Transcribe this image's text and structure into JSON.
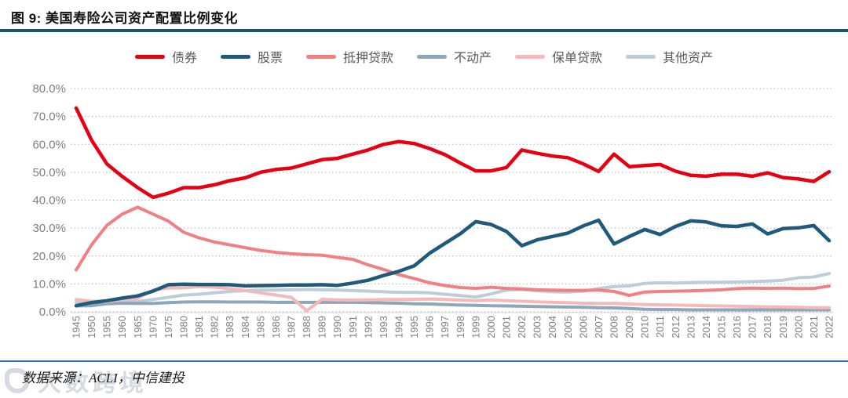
{
  "header": {
    "title": "图 9:  美国寿险公司资产配置比例变化"
  },
  "footer": {
    "source": "数据来源：ACLI，中信建投"
  },
  "watermark": {
    "text": "大数跨境",
    "logo": "rounded-square-logo"
  },
  "chart_data": {
    "type": "line",
    "title": "美国寿险公司资产配置比例变化",
    "legend_position": "top-center",
    "grid": "dotted-horizontal",
    "y_axis": {
      "min": 0,
      "max": 80,
      "tick_step": 10,
      "tick_labels": [
        "0.0%",
        "10.0%",
        "20.0%",
        "30.0%",
        "40.0%",
        "50.0%",
        "60.0%",
        "70.0%",
        "80.0%"
      ],
      "label_color": "#7f7f7f"
    },
    "x_categories": [
      "1945",
      "1950",
      "1955",
      "1960",
      "1965",
      "1970",
      "1975",
      "1980",
      "1981",
      "1982",
      "1983",
      "1984",
      "1985",
      "1986",
      "1987",
      "1988",
      "1989",
      "1990",
      "1991",
      "1992",
      "1993",
      "1994",
      "1995",
      "1996",
      "1997",
      "1998",
      "1999",
      "2000",
      "2001",
      "2002",
      "2003",
      "2004",
      "2005",
      "2006",
      "2007",
      "2008",
      "2009",
      "2010",
      "2011",
      "2012",
      "2013",
      "2014",
      "2015",
      "2016",
      "2017",
      "2018",
      "2019",
      "2020",
      "2021",
      "2022"
    ],
    "series": [
      {
        "name": "债券",
        "color": "#e60012",
        "values": [
          73,
          61.5,
          53,
          48.5,
          44.5,
          41,
          42.5,
          44.5,
          44.5,
          45.5,
          47,
          48,
          50,
          51,
          51.5,
          53,
          54.5,
          55,
          56.5,
          58,
          60,
          61,
          60.3,
          58.5,
          56.3,
          53.3,
          50.5,
          50.5,
          51.7,
          58,
          56.8,
          55.8,
          55.2,
          53,
          50.3,
          56.5,
          52,
          52.4,
          52.8,
          50.4,
          48.9,
          48.6,
          49.3,
          49.3,
          48.6,
          49.8,
          48.1,
          47.6,
          46.7,
          50.2
        ]
      },
      {
        "name": "股票",
        "color": "#1f5a7d",
        "values": [
          2.2,
          3.3,
          4,
          4.9,
          5.7,
          7.4,
          9.7,
          9.9,
          9.8,
          9.8,
          9.7,
          9.3,
          9.4,
          9.5,
          9.6,
          9.6,
          9.7,
          9.5,
          10.3,
          11.3,
          13,
          14.5,
          16.5,
          21,
          24.5,
          28,
          32.3,
          31.3,
          28.8,
          23.7,
          25.8,
          27,
          28.2,
          30.8,
          32.8,
          24.3,
          27,
          29.5,
          27.7,
          30.6,
          32.6,
          32.2,
          30.8,
          30.6,
          31.5,
          27.9,
          29.8,
          30.1,
          30.9,
          25.5
        ]
      },
      {
        "name": "抵押贷款",
        "color": "#f08082",
        "values": [
          15,
          24,
          31,
          35,
          37.5,
          35,
          32.5,
          28.5,
          26.5,
          25,
          24,
          23,
          22,
          21.3,
          20.8,
          20.5,
          20.3,
          19.5,
          18.8,
          16.8,
          15.2,
          13.3,
          11.9,
          10.4,
          9.4,
          8.7,
          8.4,
          8.8,
          8.4,
          8.2,
          7.9,
          7.8,
          7.7,
          7.7,
          7.8,
          7.3,
          5.9,
          7.1,
          7.3,
          7.4,
          7.5,
          7.7,
          7.9,
          8.3,
          8.5,
          8.4,
          8.5,
          8.3,
          8.4,
          9.2
        ]
      },
      {
        "name": "不动产",
        "color": "#8ea6b8",
        "values": [
          2.1,
          2.2,
          2.9,
          3.1,
          3,
          3,
          3.3,
          3.5,
          3.6,
          3.6,
          3.5,
          3.5,
          3.5,
          3.4,
          3.4,
          3.4,
          3.4,
          3.4,
          3.4,
          3.3,
          3.2,
          3.1,
          2.9,
          2.8,
          2.6,
          2.4,
          2.3,
          2.2,
          2.1,
          2,
          1.9,
          1.8,
          1.7,
          1.6,
          1.5,
          1.4,
          1.2,
          0.9,
          0.8,
          0.8,
          0.7,
          0.7,
          0.7,
          0.7,
          0.7,
          0.7,
          0.7,
          0.7,
          0.7,
          0.7
        ]
      },
      {
        "name": "保单贷款",
        "color": "#f6b8b8",
        "values": [
          4.4,
          3.8,
          3.6,
          4.4,
          4.8,
          7.8,
          8.5,
          8.6,
          9,
          8.8,
          8.3,
          7.6,
          6.8,
          6,
          5.2,
          0.4,
          4.5,
          4.3,
          4.2,
          4.3,
          4.4,
          4.4,
          4.5,
          4.6,
          4.4,
          4.2,
          4,
          4.2,
          4,
          3.8,
          3.6,
          3.4,
          3.3,
          3.1,
          3,
          3,
          2.8,
          2.6,
          2.5,
          2.4,
          2.3,
          2.2,
          2.1,
          2,
          1.9,
          1.8,
          1.7,
          1.6,
          1.5,
          1.5
        ]
      },
      {
        "name": "其他资产",
        "color": "#bccdd8",
        "values": [
          3.4,
          3.2,
          3.1,
          3.3,
          3.7,
          4.4,
          5.2,
          6,
          6.3,
          6.8,
          7.3,
          7.6,
          7.8,
          7.8,
          7.9,
          8,
          7.9,
          7.8,
          7.6,
          7.4,
          7.2,
          7,
          7,
          6.8,
          6.3,
          5.8,
          5.3,
          6.4,
          7.8,
          8,
          7.5,
          7.2,
          7.1,
          7.4,
          8.3,
          9,
          9.3,
          10.2,
          10.4,
          10.3,
          10.5,
          10.6,
          10.6,
          10.7,
          10.8,
          11,
          11.3,
          12.2,
          12.5,
          13.7
        ]
      }
    ]
  }
}
